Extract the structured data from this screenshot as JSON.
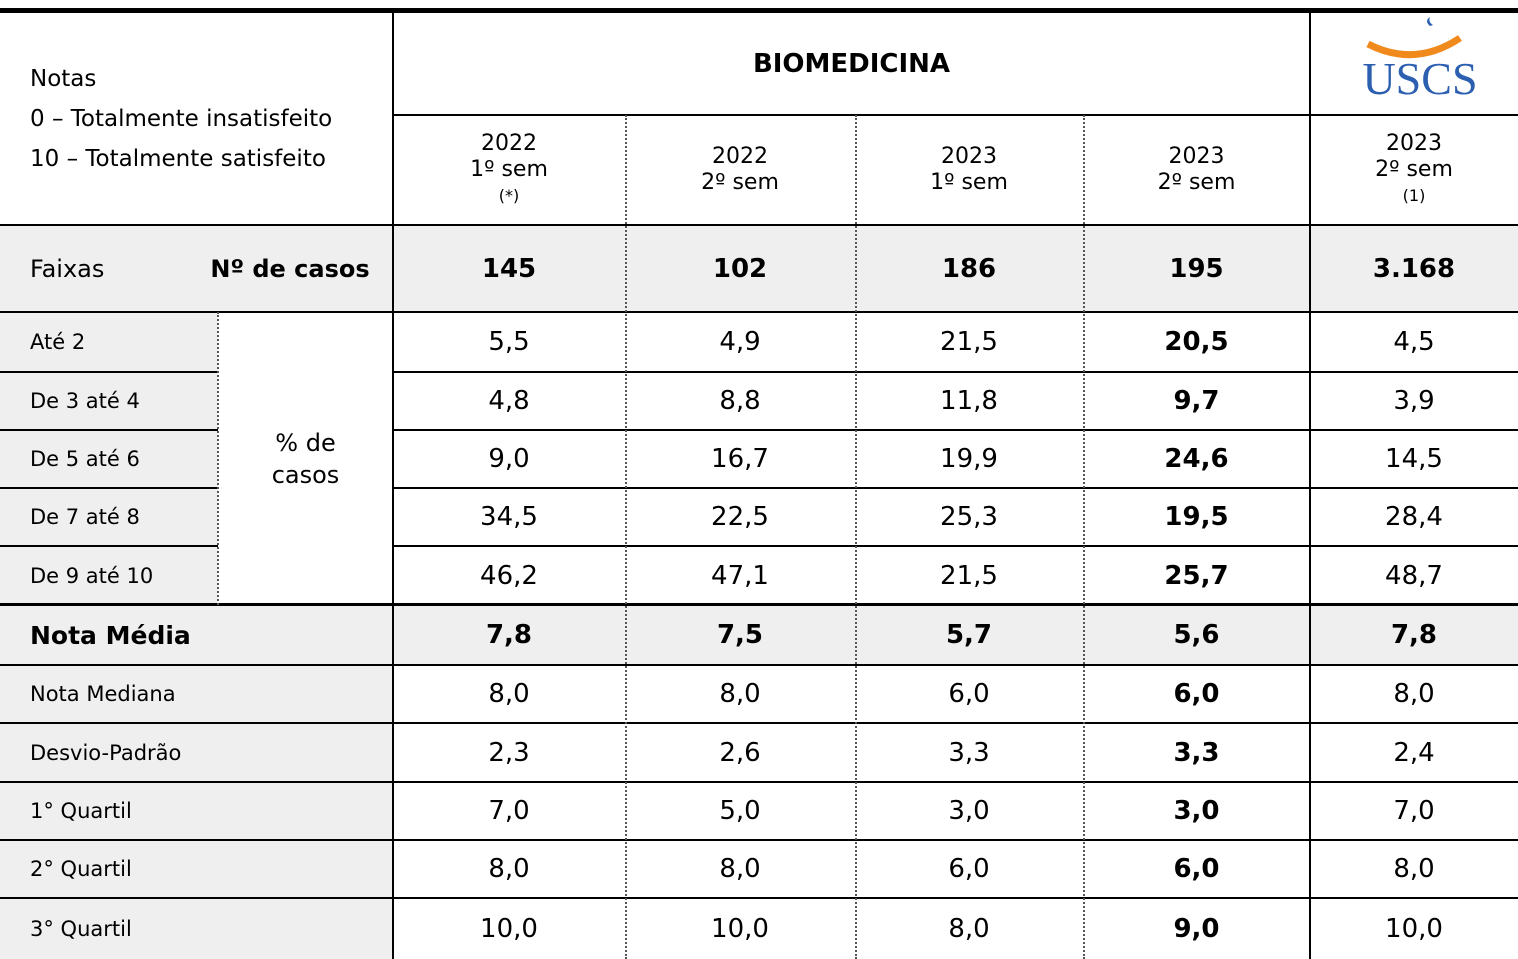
{
  "header": {
    "notes_title": "Notas",
    "notes": [
      "0 – Totalmente insatisfeito",
      "10 – Totalmente satisfeito"
    ],
    "course": "BIOMEDICINA",
    "logo": "USCS"
  },
  "columns": [
    {
      "year": "2022",
      "semester": "1º sem",
      "note": "(*)"
    },
    {
      "year": "2022",
      "semester": "2º sem"
    },
    {
      "year": "2023",
      "semester": "1º sem"
    },
    {
      "year": "2023",
      "semester": "2º sem"
    },
    {
      "year": "2023",
      "semester": "2º sem",
      "note": "(1)"
    }
  ],
  "cases_row": {
    "label": "Faixas",
    "sublabel": "Nº de casos",
    "values": [
      "145",
      "102",
      "186",
      "195",
      "3.168"
    ]
  },
  "range_group_label": "% de casos",
  "ranges": [
    {
      "label": "Até 2",
      "values": [
        "5,5",
        "4,9",
        "21,5",
        "20,5",
        "4,5"
      ]
    },
    {
      "label": "De 3 até 4",
      "values": [
        "4,8",
        "8,8",
        "11,8",
        "9,7",
        "3,9"
      ]
    },
    {
      "label": "De 5 até 6",
      "values": [
        "9,0",
        "16,7",
        "19,9",
        "24,6",
        "14,5"
      ]
    },
    {
      "label": "De 7 até 8",
      "values": [
        "34,5",
        "22,5",
        "25,3",
        "19,5",
        "28,4"
      ]
    },
    {
      "label": "De 9 até 10",
      "values": [
        "46,2",
        "47,1",
        "21,5",
        "25,7",
        "48,7"
      ]
    }
  ],
  "stats": [
    {
      "label": "Nota Média",
      "values": [
        "7,8",
        "7,5",
        "5,7",
        "5,6",
        "7,8"
      ]
    },
    {
      "label": "Nota Mediana",
      "values": [
        "8,0",
        "8,0",
        "6,0",
        "6,0",
        "8,0"
      ]
    },
    {
      "label": "Desvio-Padrão",
      "values": [
        "2,3",
        "2,6",
        "3,3",
        "3,3",
        "2,4"
      ]
    },
    {
      "label": "1° Quartil",
      "values": [
        "7,0",
        "5,0",
        "3,0",
        "3,0",
        "7,0"
      ]
    },
    {
      "label": "2° Quartil",
      "values": [
        "8,0",
        "8,0",
        "6,0",
        "6,0",
        "8,0"
      ]
    },
    {
      "label": "3° Quartil",
      "values": [
        "10,0",
        "10,0",
        "8,0",
        "9,0",
        "10,0"
      ]
    }
  ]
}
